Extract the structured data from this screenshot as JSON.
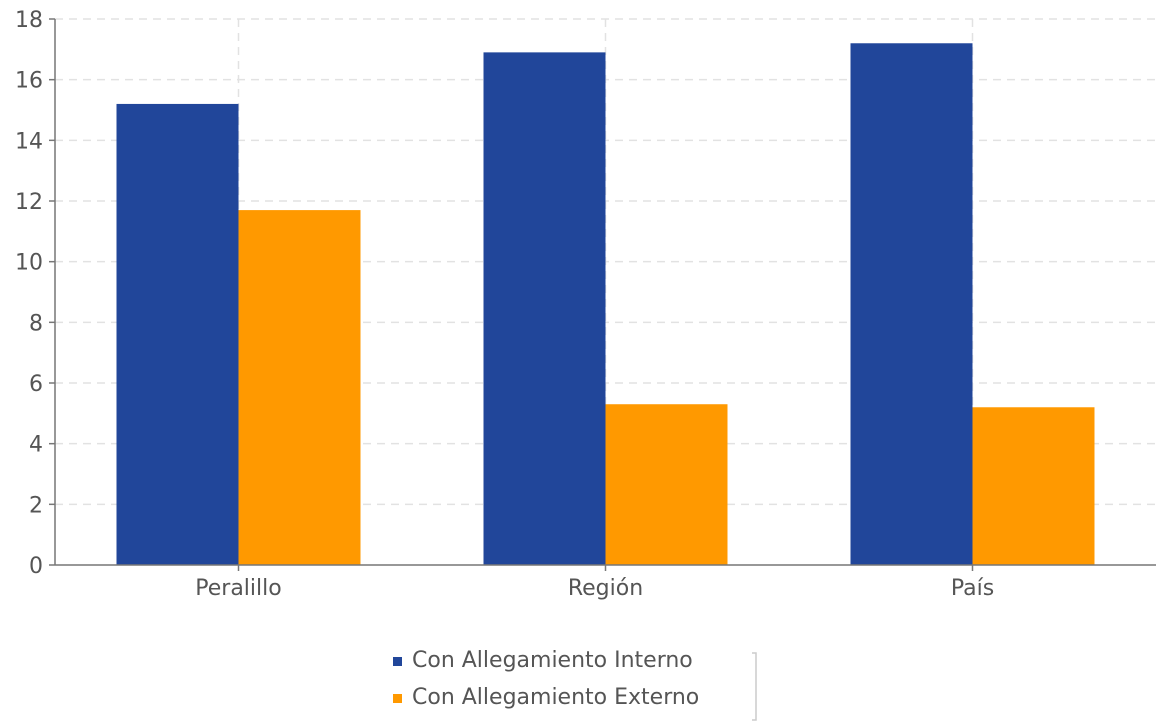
{
  "chart_data": {
    "type": "bar",
    "categories": [
      "Peralillo",
      "Región",
      "País"
    ],
    "series": [
      {
        "name": "Con Allegamiento Interno",
        "values": [
          15.2,
          16.9,
          17.2
        ],
        "color": "#21469a"
      },
      {
        "name": "Con Allegamiento Externo",
        "values": [
          11.7,
          5.3,
          5.2
        ],
        "color": "#ff9900"
      }
    ],
    "ylim": [
      0,
      18
    ],
    "yticks": [
      0,
      2,
      4,
      6,
      8,
      10,
      12,
      14,
      16,
      18
    ],
    "grid": true,
    "legend_position": "bottom"
  }
}
